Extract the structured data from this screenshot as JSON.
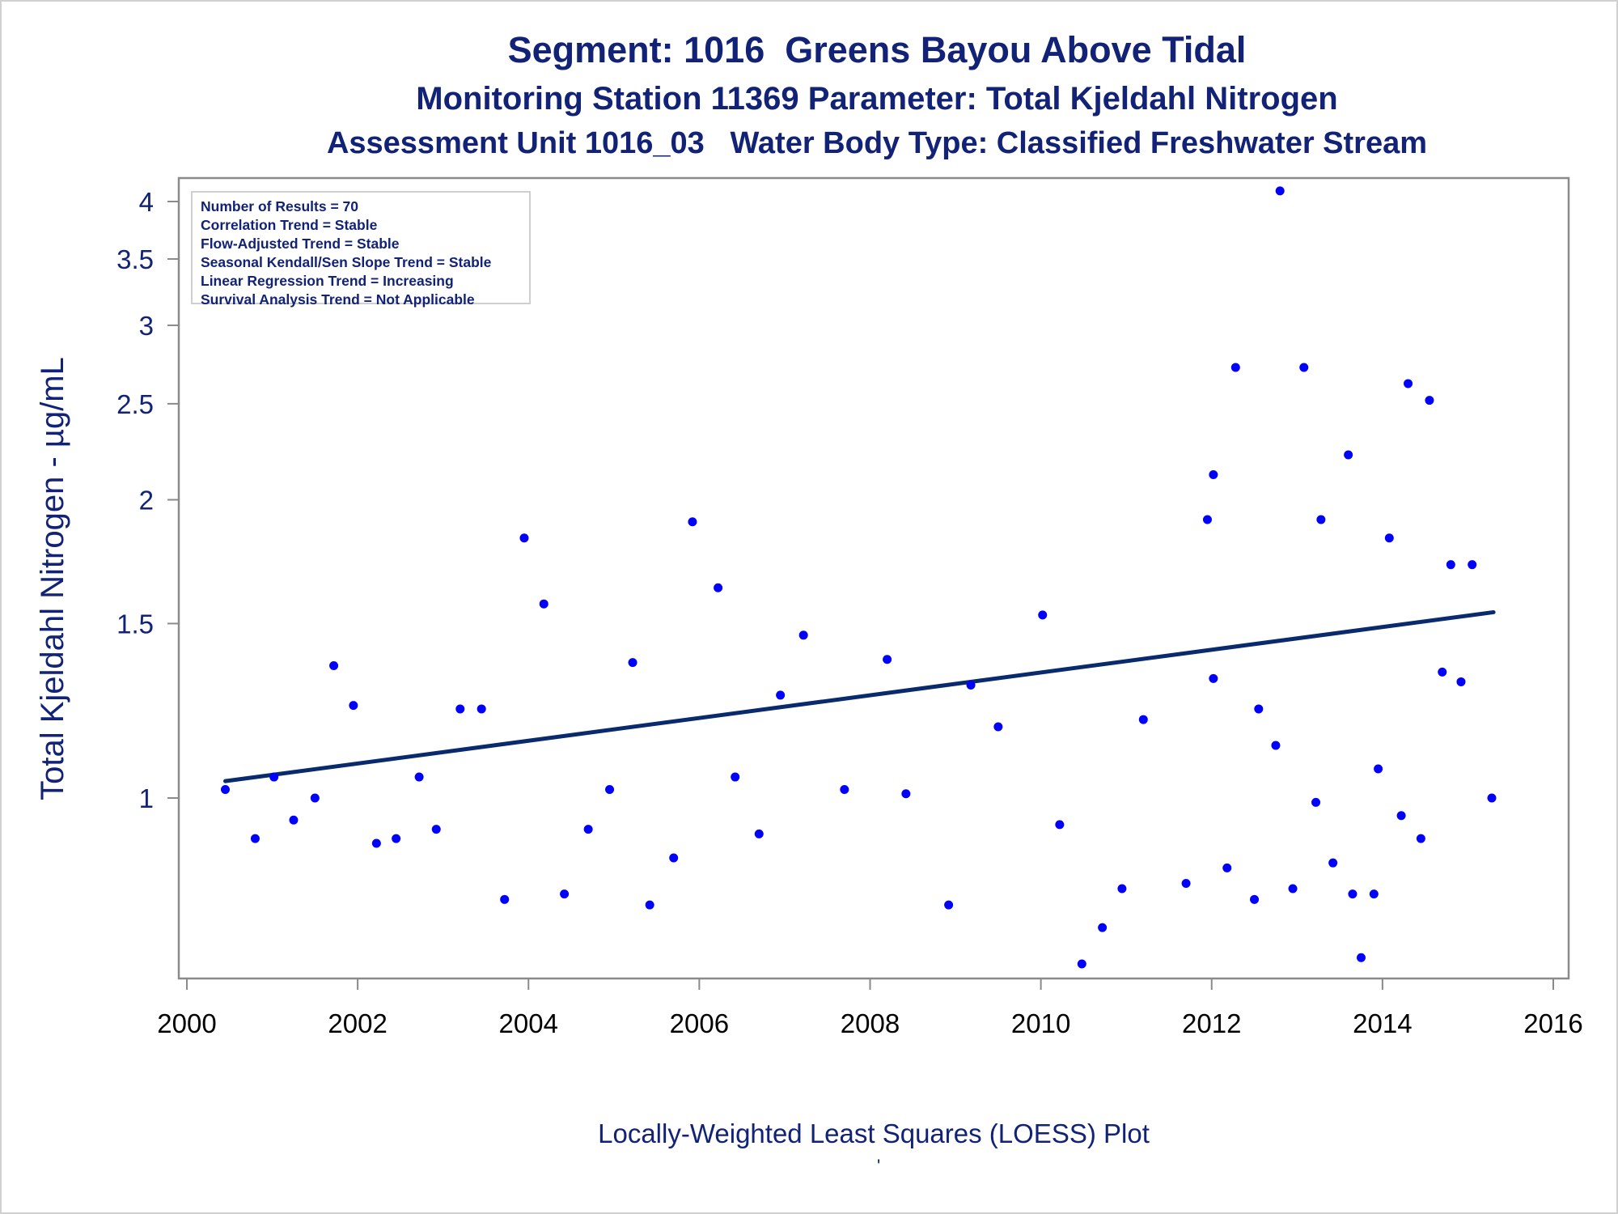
{
  "titles": {
    "line1": "Segment: 1016  Greens Bayou Above Tidal",
    "line2": "Monitoring Station 11369 Parameter: Total Kjeldahl Nitrogen",
    "line3": "Assessment Unit 1016_03   Water Body Type: Classified Freshwater Stream"
  },
  "footer": "Locally-Weighted Least Squares (LOESS) Plot",
  "footer_mark": "'",
  "legend": [
    "Number of Results = 70",
    "Correlation Trend = Stable",
    "Flow-Adjusted Trend = Stable",
    "Seasonal Kendall/Sen Slope Trend = Stable",
    "Linear Regression Trend = Increasing",
    "Survival Analysis Trend = Not Applicable"
  ],
  "colors": {
    "text": "#112277",
    "points": "#0000ff",
    "trend": "#0a2a6e",
    "axis": "#8a8a8a"
  },
  "chart_data": {
    "type": "scatter",
    "title": "Segment: 1016  Greens Bayou Above Tidal",
    "xlabel": "",
    "ylabel": "Total Kjeldahl Nitrogen -  µg/mL",
    "x_scale": "linear",
    "y_scale": "log",
    "xlim": [
      2000,
      2016
    ],
    "ylim": [
      0.63,
      4.15
    ],
    "x_ticks": [
      2000,
      2002,
      2004,
      2006,
      2008,
      2010,
      2012,
      2014,
      2016
    ],
    "x_tick_labels": [
      "2000",
      "2002",
      "2004",
      "2006",
      "2008",
      "2010",
      "2012",
      "2014",
      "2016"
    ],
    "y_ticks": [
      1,
      1.5,
      2,
      2.5,
      3,
      3.5,
      4
    ],
    "y_tick_labels": [
      "1",
      "1.5",
      "2",
      "2.5",
      "3",
      "3.5",
      "4"
    ],
    "grid": false,
    "legend_position": "top-left",
    "series": [
      {
        "kind": "points",
        "points": [
          [
            2000.45,
            1.02
          ],
          [
            2000.8,
            0.91
          ],
          [
            2001.02,
            1.05
          ],
          [
            2001.25,
            0.95
          ],
          [
            2001.5,
            1.0
          ],
          [
            2001.72,
            1.36
          ],
          [
            2001.95,
            1.24
          ],
          [
            2002.22,
            0.9
          ],
          [
            2002.45,
            0.91
          ],
          [
            2002.72,
            1.05
          ],
          [
            2002.92,
            0.93
          ],
          [
            2003.2,
            1.23
          ],
          [
            2003.45,
            1.23
          ],
          [
            2003.72,
            0.79
          ],
          [
            2003.95,
            1.83
          ],
          [
            2004.18,
            1.57
          ],
          [
            2004.42,
            0.8
          ],
          [
            2004.7,
            0.93
          ],
          [
            2004.95,
            1.02
          ],
          [
            2005.22,
            1.37
          ],
          [
            2005.42,
            0.78
          ],
          [
            2005.7,
            0.87
          ],
          [
            2005.92,
            1.9
          ],
          [
            2006.22,
            1.63
          ],
          [
            2006.42,
            1.05
          ],
          [
            2006.7,
            0.92
          ],
          [
            2006.95,
            1.27
          ],
          [
            2007.22,
            1.46
          ],
          [
            2007.7,
            1.02
          ],
          [
            2008.2,
            1.38
          ],
          [
            2008.42,
            1.01
          ],
          [
            2008.92,
            0.78
          ],
          [
            2009.18,
            1.3
          ],
          [
            2009.5,
            1.18
          ],
          [
            2010.02,
            1.53
          ],
          [
            2010.22,
            0.94
          ],
          [
            2010.48,
            0.68
          ],
          [
            2010.72,
            0.74
          ],
          [
            2010.95,
            0.81
          ],
          [
            2011.2,
            1.2
          ],
          [
            2011.7,
            0.82
          ],
          [
            2011.95,
            1.91
          ],
          [
            2012.02,
            2.12
          ],
          [
            2012.02,
            1.32
          ],
          [
            2012.18,
            0.85
          ],
          [
            2012.28,
            2.72
          ],
          [
            2012.5,
            0.79
          ],
          [
            2012.55,
            1.23
          ],
          [
            2012.75,
            1.13
          ],
          [
            2012.8,
            4.1
          ],
          [
            2012.95,
            0.81
          ],
          [
            2013.08,
            2.72
          ],
          [
            2013.22,
            0.99
          ],
          [
            2013.28,
            1.91
          ],
          [
            2013.42,
            0.86
          ],
          [
            2013.6,
            2.22
          ],
          [
            2013.65,
            0.8
          ],
          [
            2013.75,
            0.69
          ],
          [
            2013.9,
            0.8
          ],
          [
            2013.95,
            1.07
          ],
          [
            2014.08,
            1.83
          ],
          [
            2014.22,
            0.96
          ],
          [
            2014.3,
            2.62
          ],
          [
            2014.45,
            0.91
          ],
          [
            2014.55,
            2.52
          ],
          [
            2014.7,
            1.34
          ],
          [
            2014.8,
            1.72
          ],
          [
            2014.92,
            1.31
          ],
          [
            2015.05,
            1.72
          ],
          [
            2015.28,
            1.0
          ]
        ]
      },
      {
        "kind": "trend",
        "points": [
          [
            2000.45,
            1.04
          ],
          [
            2015.3,
            1.54
          ]
        ]
      }
    ]
  }
}
